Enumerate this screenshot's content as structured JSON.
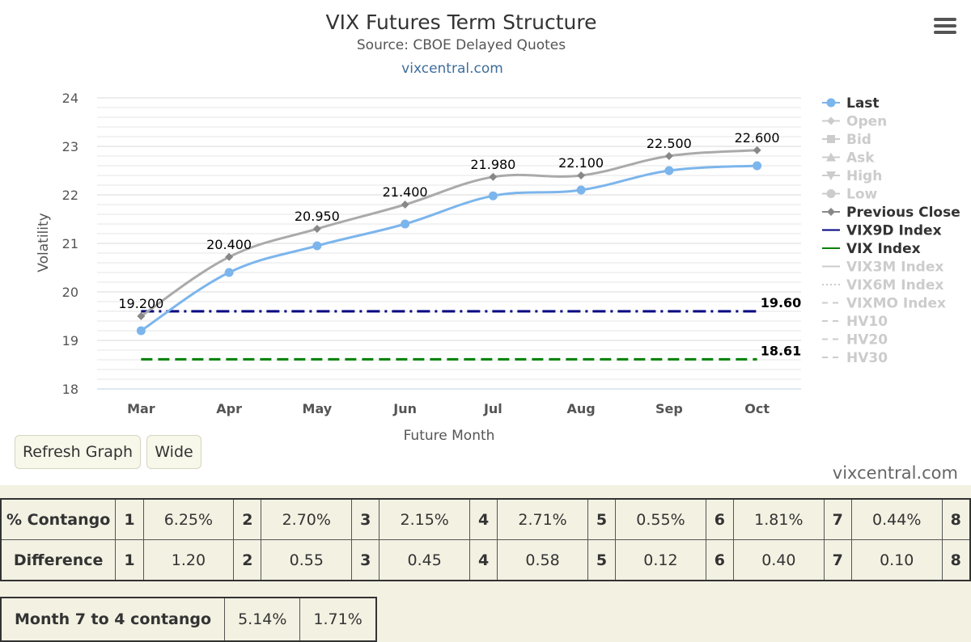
{
  "header": {
    "title": "VIX Futures Term Structure",
    "subtitle": "Source: CBOE Delayed Quotes",
    "link": "vixcentral.com"
  },
  "menu": {
    "icon": "hamburger-menu-icon"
  },
  "chart_data": {
    "type": "line",
    "title": "VIX Futures Term Structure",
    "subtitle": "Source: CBOE Delayed Quotes",
    "xlabel": "Future Month",
    "ylabel": "Volatility",
    "categories": [
      "Mar",
      "Apr",
      "May",
      "Jun",
      "Jul",
      "Aug",
      "Sep",
      "Oct"
    ],
    "ylim": [
      18,
      24
    ],
    "yticks": [
      18,
      19,
      20,
      21,
      22,
      23,
      24
    ],
    "grid": true,
    "legend_position": "right",
    "series": [
      {
        "name": "Last",
        "values": [
          19.2,
          20.4,
          20.95,
          21.4,
          21.98,
          22.1,
          22.5,
          22.6
        ],
        "labels": [
          "19.200",
          "20.400",
          "20.950",
          "21.400",
          "21.980",
          "22.100",
          "22.500",
          "22.600"
        ],
        "color": "#7cb5ec",
        "marker": "circle"
      },
      {
        "name": "Previous Close",
        "values": [
          19.5,
          20.72,
          21.3,
          21.8,
          22.37,
          22.4,
          22.8,
          22.92
        ],
        "color": "#aaaaaa",
        "marker": "diamond"
      },
      {
        "name": "VIX9D Index",
        "value": 19.6,
        "label": "19.60",
        "color": "#000080",
        "dash": "dashdot"
      },
      {
        "name": "VIX Index",
        "value": 18.61,
        "label": "18.61",
        "color": "#008000",
        "dash": "dash"
      }
    ],
    "legend": [
      {
        "name": "Last",
        "active": true,
        "symbol": "circle",
        "color": "#7cb5ec"
      },
      {
        "name": "Open",
        "active": false,
        "symbol": "diamond"
      },
      {
        "name": "Bid",
        "active": false,
        "symbol": "square"
      },
      {
        "name": "Ask",
        "active": false,
        "symbol": "triangle"
      },
      {
        "name": "High",
        "active": false,
        "symbol": "triangle-down"
      },
      {
        "name": "Low",
        "active": false,
        "symbol": "circle"
      },
      {
        "name": "Previous Close",
        "active": true,
        "symbol": "diamond",
        "color": "#888888"
      },
      {
        "name": "VIX9D Index",
        "active": true,
        "symbol": "line",
        "color": "#000080"
      },
      {
        "name": "VIX Index",
        "active": true,
        "symbol": "line",
        "color": "#008000"
      },
      {
        "name": "VIX3M Index",
        "active": false,
        "symbol": "line"
      },
      {
        "name": "VIX6M Index",
        "active": false,
        "symbol": "dotted"
      },
      {
        "name": "VIXMO Index",
        "active": false,
        "symbol": "dashed"
      },
      {
        "name": "HV10",
        "active": false,
        "symbol": "dashed"
      },
      {
        "name": "HV20",
        "active": false,
        "symbol": "dashed"
      },
      {
        "name": "HV30",
        "active": false,
        "symbol": "dashed"
      }
    ]
  },
  "buttons": {
    "refresh": "Refresh Graph",
    "wide": "Wide"
  },
  "credit": "vixcentral.com",
  "contango_table": {
    "rows": [
      {
        "label": "% Contango",
        "cells": [
          [
            "1",
            "6.25%"
          ],
          [
            "2",
            "2.70%"
          ],
          [
            "3",
            "2.15%"
          ],
          [
            "4",
            "2.71%"
          ],
          [
            "5",
            "0.55%"
          ],
          [
            "6",
            "1.81%"
          ],
          [
            "7",
            "0.44%"
          ],
          [
            "8",
            ""
          ]
        ]
      },
      {
        "label": "Difference",
        "cells": [
          [
            "1",
            "1.20"
          ],
          [
            "2",
            "0.55"
          ],
          [
            "3",
            "0.45"
          ],
          [
            "4",
            "0.58"
          ],
          [
            "5",
            "0.12"
          ],
          [
            "6",
            "0.40"
          ],
          [
            "7",
            "0.10"
          ],
          [
            "8",
            ""
          ]
        ]
      }
    ]
  },
  "month_table": {
    "label": "Month 7 to 4 contango",
    "values": [
      "5.14%",
      "1.71%"
    ]
  },
  "colors": {
    "last": "#7cb5ec",
    "prev_close": "#aaaaaa",
    "vix9d": "#000080",
    "vix": "#008000",
    "bottom_bg": "#f3f1e2"
  }
}
